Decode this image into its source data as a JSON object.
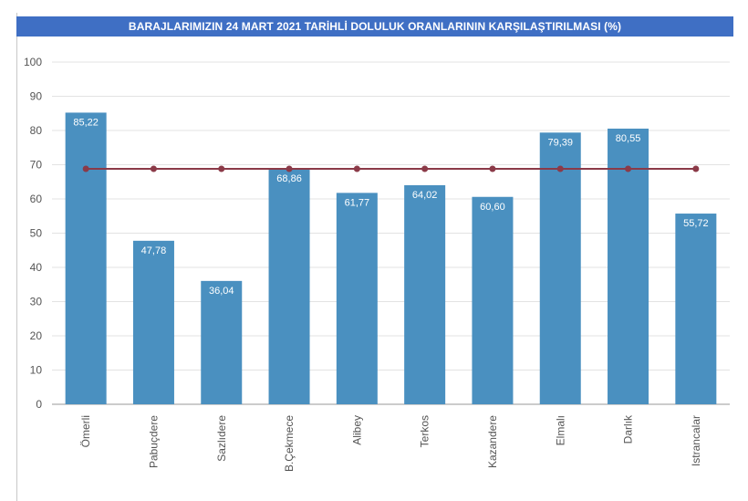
{
  "chart_data": {
    "type": "bar",
    "title": "BARAJLARIMIZIN 24 MART 2021 TARİHLİ DOLULUK ORANLARININ KARŞILAŞTIRILMASI (%)",
    "categories": [
      "Ömerli",
      "Pabuçdere",
      "Sazlıdere",
      "B.Çekmece",
      "Alibey",
      "Terkos",
      "Kazandere",
      "Elmalı",
      "Darlık",
      "Istrancalar"
    ],
    "values": [
      85.22,
      47.78,
      36.04,
      68.86,
      61.77,
      64.02,
      60.6,
      79.39,
      80.55,
      55.72
    ],
    "value_labels": [
      "85,22",
      "47,78",
      "36,04",
      "68,86",
      "61,77",
      "64,02",
      "60,60",
      "79,39",
      "80,55",
      "55,72"
    ],
    "average_line": {
      "value": 68.8
    },
    "ylim": [
      0,
      100
    ],
    "yticks": [
      0,
      10,
      20,
      30,
      40,
      50,
      60,
      70,
      80,
      90,
      100
    ],
    "xlabel": "",
    "ylabel": "",
    "grid": true,
    "colors": {
      "bar": "#4a90c0",
      "line": "#8b3a48",
      "title_bg": "#3f6fc4",
      "grid": "#e3e3e3"
    }
  }
}
